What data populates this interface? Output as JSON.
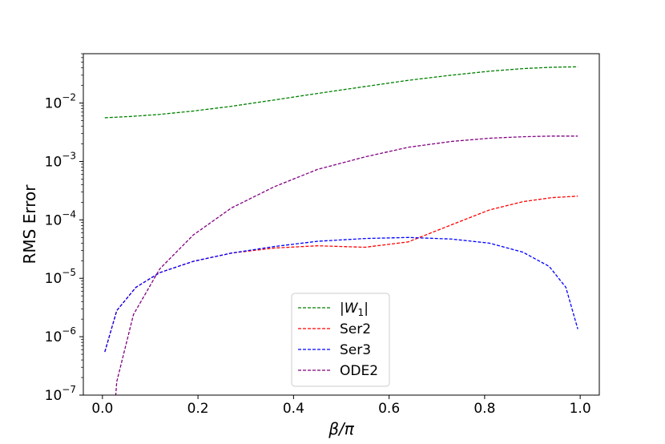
{
  "chart_data": {
    "type": "line",
    "title": "",
    "xlabel": "β/π",
    "ylabel": "RMS Error",
    "xlim": [
      -0.04,
      1.04
    ],
    "ylim": [
      1e-07,
      0.07
    ],
    "yscale": "log",
    "grid": false,
    "legend_position": "lower center",
    "x_ticks": [
      0.0,
      0.2,
      0.4,
      0.6,
      0.8,
      1.0
    ],
    "x_tick_labels": [
      "0.0",
      "0.2",
      "0.4",
      "0.6",
      "0.8",
      "1.0"
    ],
    "y_ticks": [
      1e-07,
      1e-06,
      1e-05,
      0.0001,
      0.001,
      0.01
    ],
    "y_tick_labels": [
      {
        "base": "10",
        "exp": "−7"
      },
      {
        "base": "10",
        "exp": "−6"
      },
      {
        "base": "10",
        "exp": "−5"
      },
      {
        "base": "10",
        "exp": "−4"
      },
      {
        "base": "10",
        "exp": "−3"
      },
      {
        "base": "10",
        "exp": "−2"
      }
    ],
    "series": [
      {
        "name": "|W1|",
        "legend_label": {
          "pre": "|",
          "main": "W",
          "sub": "1",
          "post": "|"
        },
        "color": "#008000",
        "points": [
          [
            0.005,
            0.0056
          ],
          [
            0.06,
            0.0059
          ],
          [
            0.12,
            0.0064
          ],
          [
            0.19,
            0.0073
          ],
          [
            0.27,
            0.0088
          ],
          [
            0.36,
            0.0113
          ],
          [
            0.45,
            0.0146
          ],
          [
            0.55,
            0.0192
          ],
          [
            0.64,
            0.0245
          ],
          [
            0.73,
            0.03
          ],
          [
            0.81,
            0.0351
          ],
          [
            0.88,
            0.0389
          ],
          [
            0.94,
            0.041
          ],
          [
            0.995,
            0.0418
          ]
        ]
      },
      {
        "name": "Ser2",
        "legend_label": {
          "pre": "",
          "main": "Ser2",
          "sub": "",
          "post": ""
        },
        "color": "#ff0000",
        "points": [
          [
            0.005,
            5.5e-07
          ],
          [
            0.03,
            2.8e-06
          ],
          [
            0.07,
            7e-06
          ],
          [
            0.12,
            1.25e-05
          ],
          [
            0.19,
            1.95e-05
          ],
          [
            0.27,
            2.7e-05
          ],
          [
            0.36,
            3.3e-05
          ],
          [
            0.45,
            3.6e-05
          ],
          [
            0.55,
            3.4e-05
          ],
          [
            0.64,
            4.2e-05
          ],
          [
            0.73,
            8.2e-05
          ],
          [
            0.81,
            0.000148
          ],
          [
            0.88,
            0.000205
          ],
          [
            0.94,
            0.00024
          ],
          [
            0.995,
            0.000255
          ]
        ]
      },
      {
        "name": "Ser3",
        "legend_label": {
          "pre": "",
          "main": "Ser3",
          "sub": "",
          "post": ""
        },
        "color": "#0000ff",
        "points": [
          [
            0.005,
            5.5e-07
          ],
          [
            0.03,
            2.8e-06
          ],
          [
            0.07,
            7e-06
          ],
          [
            0.12,
            1.25e-05
          ],
          [
            0.19,
            1.95e-05
          ],
          [
            0.27,
            2.7e-05
          ],
          [
            0.36,
            3.5e-05
          ],
          [
            0.45,
            4.3e-05
          ],
          [
            0.55,
            4.8e-05
          ],
          [
            0.64,
            5e-05
          ],
          [
            0.73,
            4.7e-05
          ],
          [
            0.81,
            4e-05
          ],
          [
            0.88,
            2.8e-05
          ],
          [
            0.935,
            1.6e-05
          ],
          [
            0.97,
            7e-06
          ],
          [
            0.995,
            1.35e-06
          ]
        ]
      },
      {
        "name": "ODE2",
        "legend_label": {
          "pre": "",
          "main": "ODE2",
          "sub": "",
          "post": ""
        },
        "color": "#800080",
        "points": [
          [
            0.027,
            8e-08
          ],
          [
            0.03,
            1.7e-07
          ],
          [
            0.065,
            2.4e-06
          ],
          [
            0.12,
            1.45e-05
          ],
          [
            0.19,
            5.5e-05
          ],
          [
            0.27,
            0.00016
          ],
          [
            0.36,
            0.00037
          ],
          [
            0.45,
            0.00073
          ],
          [
            0.55,
            0.0012
          ],
          [
            0.64,
            0.00175
          ],
          [
            0.73,
            0.0022
          ],
          [
            0.81,
            0.0025
          ],
          [
            0.88,
            0.00265
          ],
          [
            0.94,
            0.00272
          ],
          [
            0.995,
            0.00272
          ]
        ]
      }
    ]
  }
}
